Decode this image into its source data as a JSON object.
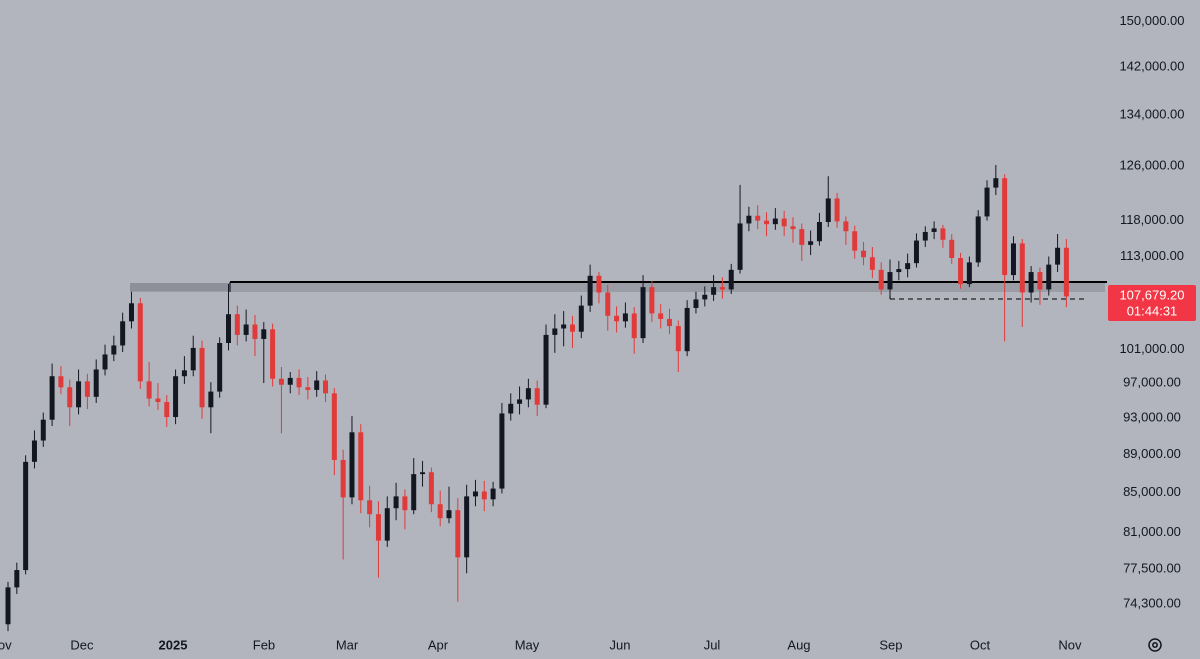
{
  "chart_data": {
    "type": "candlestick",
    "log_scale": true,
    "up_color": "#131722",
    "down_color": "#e03a3a",
    "ylim": [
      72000,
      154000
    ],
    "yticks": [
      {
        "value": 150000,
        "label": "150,000.00"
      },
      {
        "value": 142000,
        "label": "142,000.00"
      },
      {
        "value": 134000,
        "label": "134,000.00"
      },
      {
        "value": 126000,
        "label": "126,000.00"
      },
      {
        "value": 118000,
        "label": "118,000.00"
      },
      {
        "value": 113000,
        "label": "113,000.00"
      },
      {
        "value": 101000,
        "label": "101,000.00"
      },
      {
        "value": 97000,
        "label": "97,000.00"
      },
      {
        "value": 93000,
        "label": "93,000.00"
      },
      {
        "value": 89000,
        "label": "89,000.00"
      },
      {
        "value": 85000,
        "label": "85,000.00"
      },
      {
        "value": 81000,
        "label": "81,000.00"
      },
      {
        "value": 77500,
        "label": "77,500.00"
      },
      {
        "value": 74300,
        "label": "74,300.00"
      }
    ],
    "xticks": [
      {
        "value": -0.9,
        "label": "Nov"
      },
      {
        "value": 8.39,
        "label": "Dec"
      },
      {
        "value": 18.71,
        "label": "2025"
      },
      {
        "value": 29.02,
        "label": "Feb"
      },
      {
        "value": 38.44,
        "label": "Mar"
      },
      {
        "value": 48.75,
        "label": "Apr"
      },
      {
        "value": 58.84,
        "label": "May"
      },
      {
        "value": 69.39,
        "label": "Jun"
      },
      {
        "value": 79.82,
        "label": "Jul"
      },
      {
        "value": 89.68,
        "label": "Aug"
      },
      {
        "value": 100.11,
        "label": "Sep"
      },
      {
        "value": 110.2,
        "label": "Oct"
      },
      {
        "value": 120.4,
        "label": "Nov"
      }
    ],
    "price_label": {
      "value": 107679.2,
      "label": "107,679.20"
    },
    "countdown": "01:44:31",
    "open": [
      72500,
      75800,
      77400,
      88200,
      90500,
      92800,
      97800,
      96500,
      94200,
      97200,
      95400,
      98600,
      100400,
      101500,
      104500,
      106800,
      97200,
      95200,
      94800,
      93100,
      97800,
      98500,
      101200,
      94200,
      96000,
      101800,
      105400,
      102800,
      104100,
      102300,
      103500,
      97500,
      96800,
      97600,
      96500,
      96200,
      97300,
      95800,
      88400,
      84500,
      91400,
      84200,
      82800,
      80200,
      83400,
      84600,
      83200,
      86900,
      87100,
      83800,
      82400,
      83200,
      78600,
      84600,
      85100,
      84300,
      85400,
      93500,
      94600,
      95100,
      96400,
      94500,
      102800,
      103600,
      104100,
      103200,
      106500,
      110400,
      108200,
      105200,
      104500,
      105500,
      102400,
      108900,
      105500,
      104800,
      103900,
      100800,
      106200,
      107300,
      107900,
      108900,
      108600,
      111200,
      117600,
      118700,
      118000,
      117500,
      118300,
      117200,
      116800,
      114600,
      115100,
      117800,
      121200,
      117900,
      116500,
      113800,
      112900,
      111200,
      108600,
      110900,
      111300,
      112100,
      115200,
      116400,
      116900,
      115300,
      112800,
      109300,
      112200,
      118600,
      122800,
      124200,
      110500,
      114800,
      108200,
      110900,
      108600,
      111900,
      114200
    ],
    "high": [
      76300,
      78100,
      88900,
      91600,
      93600,
      99300,
      99000,
      97400,
      98600,
      98100,
      99800,
      101600,
      102700,
      105600,
      108300,
      107500,
      99500,
      97000,
      95600,
      98600,
      100200,
      102700,
      102100,
      97100,
      102500,
      109300,
      106500,
      106000,
      105300,
      104400,
      104200,
      98900,
      98300,
      98600,
      97700,
      98400,
      98000,
      96400,
      89500,
      93200,
      92300,
      85700,
      84100,
      84600,
      86000,
      85300,
      88600,
      88300,
      87600,
      85200,
      85600,
      84400,
      85800,
      86300,
      86200,
      86100,
      94700,
      95800,
      96600,
      97500,
      97300,
      104100,
      105400,
      105800,
      105200,
      107800,
      111900,
      110900,
      109200,
      106400,
      106900,
      106300,
      110500,
      109700,
      106700,
      106100,
      104600,
      107200,
      108300,
      109000,
      110500,
      110200,
      112000,
      123200,
      120000,
      120200,
      119200,
      119800,
      119400,
      118500,
      117600,
      116600,
      119100,
      124500,
      122000,
      118600,
      117300,
      115000,
      114300,
      112200,
      112600,
      112400,
      113400,
      116200,
      117200,
      117900,
      117400,
      116100,
      113500,
      113000,
      119500,
      123900,
      126200,
      124800,
      115800,
      115400,
      111700,
      111500,
      113000,
      116100,
      115400
    ],
    "low": [
      71900,
      75200,
      77000,
      87500,
      89800,
      92100,
      95700,
      92100,
      93400,
      94000,
      94700,
      97900,
      99600,
      100700,
      103600,
      96300,
      94300,
      93900,
      92000,
      92300,
      96900,
      97800,
      92900,
      91300,
      95300,
      100900,
      101500,
      102000,
      100200,
      97000,
      96600,
      91300,
      95800,
      95600,
      95100,
      95400,
      94800,
      86800,
      78400,
      83800,
      82900,
      81500,
      76700,
      79600,
      82200,
      81300,
      82800,
      85600,
      83000,
      81600,
      81900,
      74500,
      77100,
      83600,
      83100,
      83600,
      84900,
      92700,
      93400,
      94200,
      93200,
      94100,
      100600,
      101400,
      101200,
      102400,
      105700,
      106800,
      103300,
      103100,
      103700,
      100500,
      101800,
      104400,
      103600,
      102900,
      98300,
      100200,
      105500,
      106400,
      107100,
      107400,
      108000,
      110700,
      116500,
      116800,
      115800,
      116700,
      115800,
      114900,
      112400,
      113200,
      114500,
      117100,
      117000,
      114600,
      112700,
      111800,
      110100,
      107900,
      107800,
      109800,
      110200,
      111500,
      114300,
      115400,
      114200,
      112000,
      108700,
      108900,
      111600,
      118000,
      121700,
      102000,
      109800,
      103800,
      106900,
      106600,
      107800,
      110900,
      106300
    ],
    "close": [
      75800,
      77400,
      88200,
      90500,
      92800,
      97800,
      96500,
      94200,
      97200,
      95400,
      98600,
      100400,
      101500,
      104500,
      106800,
      97200,
      95200,
      94800,
      93100,
      97800,
      98500,
      101200,
      94200,
      96000,
      101800,
      105400,
      102800,
      104100,
      102300,
      103500,
      97500,
      96800,
      97600,
      96500,
      96200,
      97300,
      95800,
      88400,
      84500,
      91400,
      84200,
      82800,
      80200,
      83400,
      84600,
      83200,
      86900,
      87100,
      83800,
      82400,
      83200,
      78600,
      84600,
      85100,
      84300,
      85400,
      93500,
      94600,
      95100,
      96400,
      94500,
      102800,
      103600,
      104100,
      103200,
      106500,
      110400,
      108200,
      105200,
      104500,
      105500,
      102400,
      108900,
      105500,
      104800,
      103900,
      100800,
      106200,
      107300,
      107900,
      108900,
      108600,
      111200,
      117600,
      118700,
      118000,
      117500,
      118300,
      117200,
      116800,
      114600,
      115100,
      117800,
      121200,
      117900,
      116500,
      113800,
      112900,
      111200,
      108600,
      110900,
      111300,
      112100,
      115200,
      116400,
      116900,
      115300,
      112800,
      109300,
      112200,
      118600,
      122800,
      124200,
      110500,
      114800,
      108200,
      110900,
      108600,
      111900,
      114200,
      107679.2
    ]
  }
}
